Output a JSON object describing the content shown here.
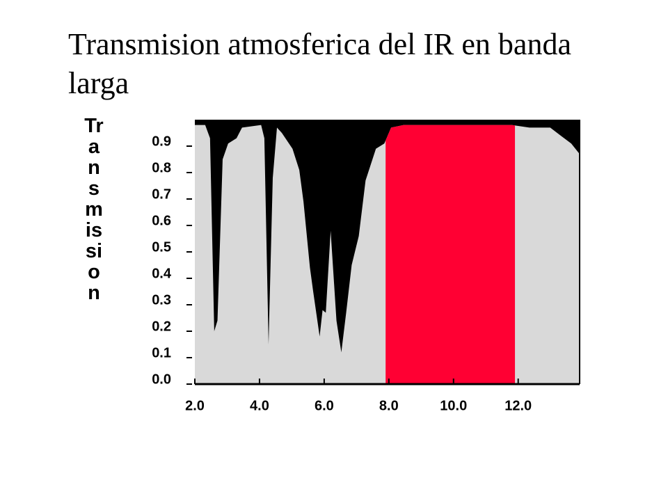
{
  "chart_data": {
    "type": "area",
    "title": "Transmision atmosferica del IR en banda larga",
    "y_label": "Transmission",
    "x": [
      2.0,
      2.32,
      2.47,
      2.6,
      2.7,
      2.86,
      3.03,
      3.29,
      3.46,
      4.05,
      4.15,
      4.28,
      4.41,
      4.54,
      4.69,
      5.02,
      5.23,
      5.36,
      5.56,
      5.66,
      5.86,
      5.95,
      6.05,
      6.2,
      6.38,
      6.53,
      6.68,
      6.85,
      7.07,
      7.28,
      7.6,
      7.86,
      8.07,
      8.46,
      9.97,
      11.8,
      12.35,
      12.99,
      13.31,
      13.64,
      13.9
    ],
    "y": [
      0.98,
      0.98,
      0.93,
      0.2,
      0.24,
      0.85,
      0.91,
      0.93,
      0.97,
      0.98,
      0.93,
      0.15,
      0.78,
      0.97,
      0.95,
      0.89,
      0.81,
      0.69,
      0.44,
      0.35,
      0.18,
      0.28,
      0.27,
      0.58,
      0.24,
      0.12,
      0.27,
      0.45,
      0.56,
      0.77,
      0.89,
      0.91,
      0.97,
      0.98,
      0.98,
      0.98,
      0.97,
      0.97,
      0.94,
      0.91,
      0.87
    ],
    "color": "#d9d9d9",
    "background_color": "#000000",
    "highlight_band": [
      7.9,
      11.9
    ],
    "highlight_color": "#ff0033",
    "xlim": [
      2.0,
      13.9
    ],
    "ylim": [
      0,
      1
    ],
    "xticks": [
      {
        "value": 2,
        "label": "2.0"
      },
      {
        "value": 4,
        "label": "4.0"
      },
      {
        "value": 6,
        "label": "6.0"
      },
      {
        "value": 8,
        "label": "8.0"
      },
      {
        "value": 10,
        "label": "10.0"
      },
      {
        "value": 12,
        "label": "12.0"
      }
    ],
    "yticks": [
      {
        "value": 0,
        "label": "0.0"
      },
      0.1,
      0.2,
      0.3,
      0.4,
      0.5,
      0.6,
      0.7,
      0.8,
      0.9
    ]
  }
}
